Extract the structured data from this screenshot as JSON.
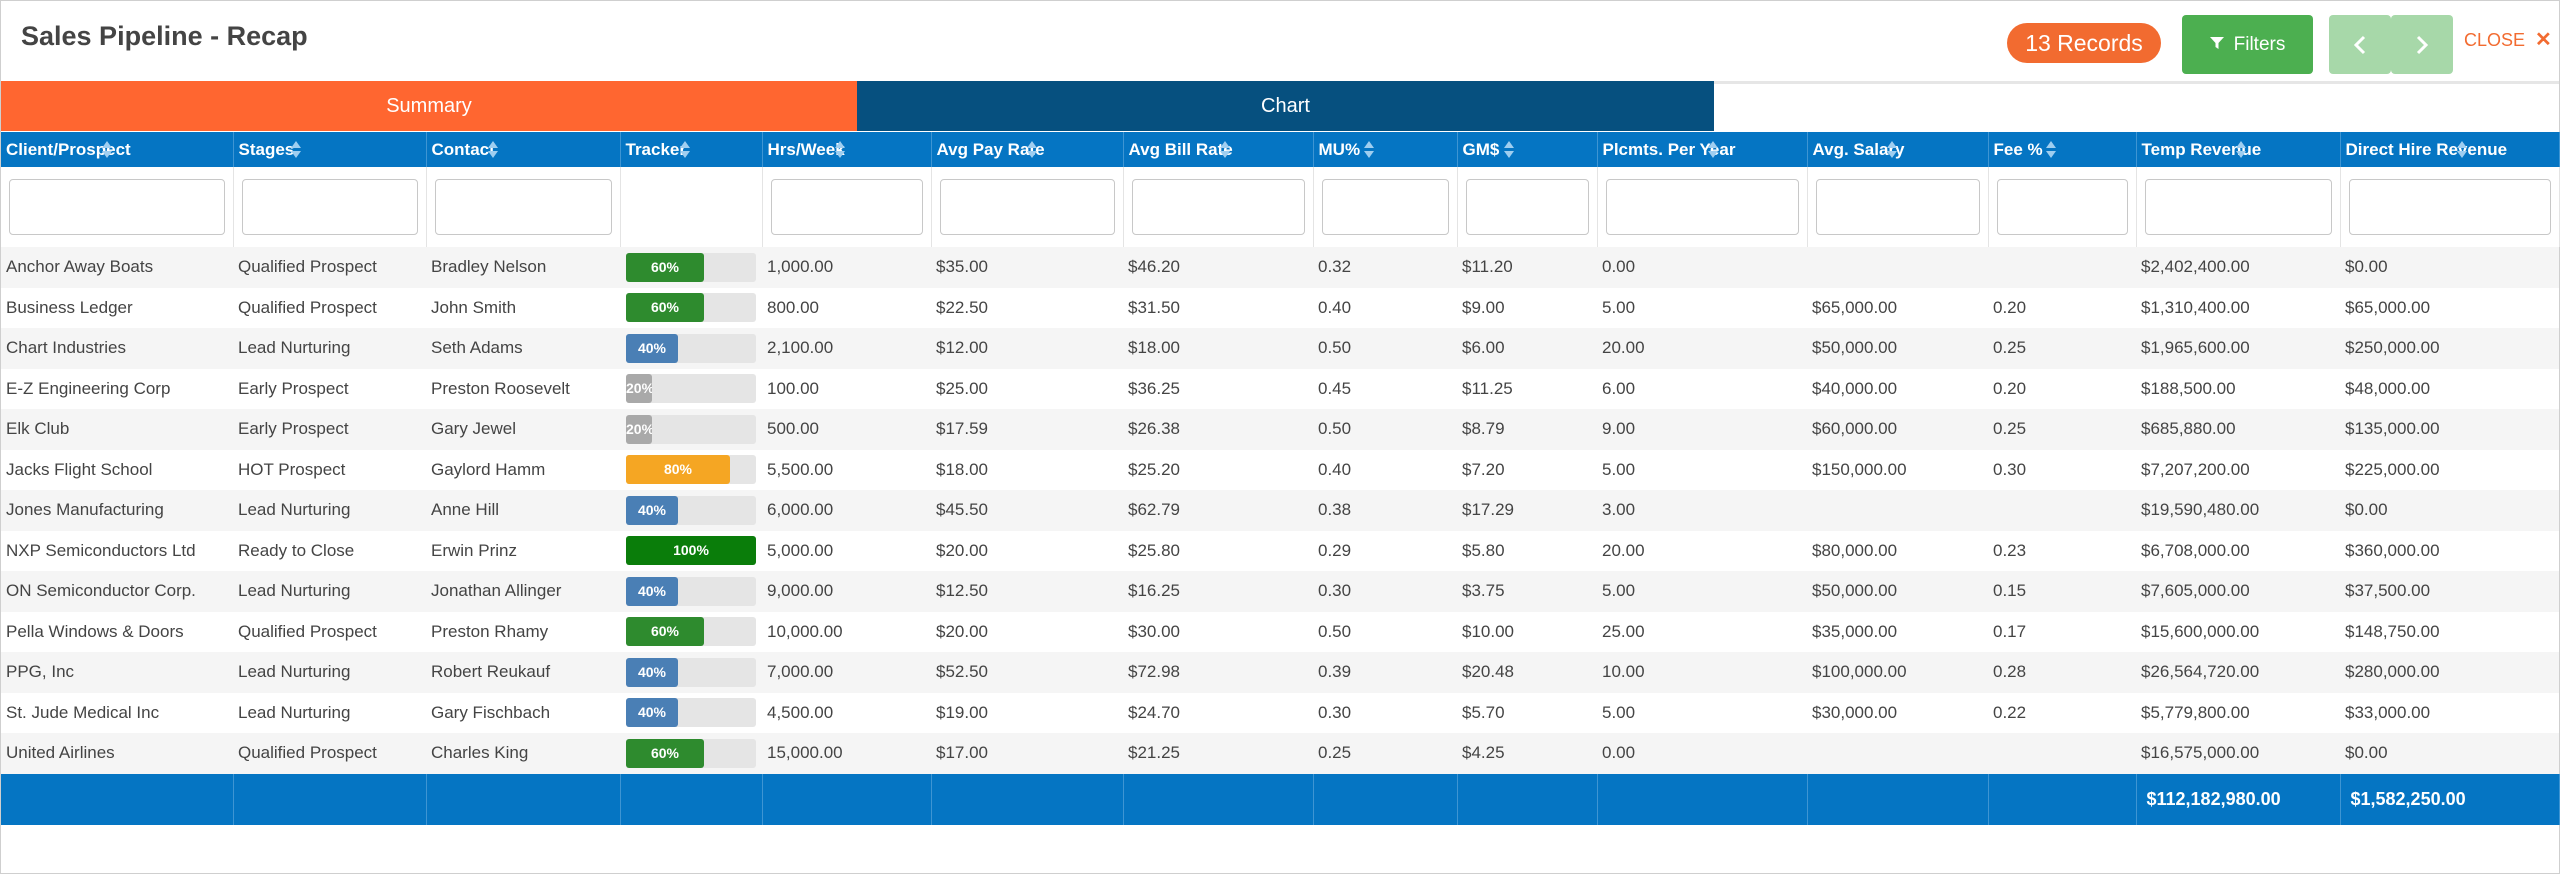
{
  "header": {
    "title": "Sales Pipeline - Recap",
    "records_badge": "13 Records",
    "filters_label": "Filters",
    "close_label": "CLOSE",
    "close_glyph": "✕"
  },
  "tabs": [
    {
      "label": "Summary",
      "active": true,
      "color": "#ff6630"
    },
    {
      "label": "Chart",
      "active": false,
      "color": "#06507f"
    }
  ],
  "columns": [
    "Client/Prospect",
    "Stages",
    "Contact",
    "Tracker",
    "Hrs/Week",
    "Avg Pay Rate",
    "Avg Bill Rate",
    "MU%",
    "GM$",
    "Plcmts. Per Year",
    "Avg. Salary",
    "Fee %",
    "Temp Revenue",
    "Direct Hire Revenue"
  ],
  "rows": [
    {
      "client": "Anchor Away Boats",
      "stage": "Qualified Prospect",
      "contact": "Bradley Nelson",
      "tracker": "60%",
      "tracker_value": 0.6,
      "tracker_color": "#2e8b2e",
      "hrs": "1,000.00",
      "pay": "$35.00",
      "bill": "$46.20",
      "mu": "0.32",
      "gm": "$11.20",
      "plcmts": "0.00",
      "salary": "",
      "fee": "",
      "temp": "$2,402,400.00",
      "direct": "$0.00"
    },
    {
      "client": "Business Ledger",
      "stage": "Qualified Prospect",
      "contact": "John Smith",
      "tracker": "60%",
      "tracker_value": 0.6,
      "tracker_color": "#2e8b2e",
      "hrs": "800.00",
      "pay": "$22.50",
      "bill": "$31.50",
      "mu": "0.40",
      "gm": "$9.00",
      "plcmts": "5.00",
      "salary": "$65,000.00",
      "fee": "0.20",
      "temp": "$1,310,400.00",
      "direct": "$65,000.00"
    },
    {
      "client": "Chart Industries",
      "stage": "Lead Nurturing",
      "contact": "Seth Adams",
      "tracker": "40%",
      "tracker_value": 0.4,
      "tracker_color": "#4a7fb5",
      "hrs": "2,100.00",
      "pay": "$12.00",
      "bill": "$18.00",
      "mu": "0.50",
      "gm": "$6.00",
      "plcmts": "20.00",
      "salary": "$50,000.00",
      "fee": "0.25",
      "temp": "$1,965,600.00",
      "direct": "$250,000.00"
    },
    {
      "client": "E-Z Engineering Corp",
      "stage": "Early Prospect",
      "contact": "Preston Roosevelt",
      "tracker": "20%",
      "tracker_value": 0.2,
      "tracker_color": "#a9a9a9",
      "hrs": "100.00",
      "pay": "$25.00",
      "bill": "$36.25",
      "mu": "0.45",
      "gm": "$11.25",
      "plcmts": "6.00",
      "salary": "$40,000.00",
      "fee": "0.20",
      "temp": "$188,500.00",
      "direct": "$48,000.00"
    },
    {
      "client": "Elk Club",
      "stage": "Early Prospect",
      "contact": "Gary Jewel",
      "tracker": "20%",
      "tracker_value": 0.2,
      "tracker_color": "#a9a9a9",
      "hrs": "500.00",
      "pay": "$17.59",
      "bill": "$26.38",
      "mu": "0.50",
      "gm": "$8.79",
      "plcmts": "9.00",
      "salary": "$60,000.00",
      "fee": "0.25",
      "temp": "$685,880.00",
      "direct": "$135,000.00"
    },
    {
      "client": "Jacks Flight School",
      "stage": "HOT Prospect",
      "contact": "Gaylord Hamm",
      "tracker": "80%",
      "tracker_value": 0.8,
      "tracker_color": "#f5a623",
      "hrs": "5,500.00",
      "pay": "$18.00",
      "bill": "$25.20",
      "mu": "0.40",
      "gm": "$7.20",
      "plcmts": "5.00",
      "salary": "$150,000.00",
      "fee": "0.30",
      "temp": "$7,207,200.00",
      "direct": "$225,000.00"
    },
    {
      "client": "Jones Manufacturing",
      "stage": "Lead Nurturing",
      "contact": "Anne Hill",
      "tracker": "40%",
      "tracker_value": 0.4,
      "tracker_color": "#4a7fb5",
      "hrs": "6,000.00",
      "pay": "$45.50",
      "bill": "$62.79",
      "mu": "0.38",
      "gm": "$17.29",
      "plcmts": "3.00",
      "salary": "",
      "fee": "",
      "temp": "$19,590,480.00",
      "direct": "$0.00"
    },
    {
      "client": "NXP Semiconductors Ltd",
      "stage": "Ready to Close",
      "contact": "Erwin Prinz",
      "tracker": "100%",
      "tracker_value": 1.0,
      "tracker_color": "#0a7d0a",
      "hrs": "5,000.00",
      "pay": "$20.00",
      "bill": "$25.80",
      "mu": "0.29",
      "gm": "$5.80",
      "plcmts": "20.00",
      "salary": "$80,000.00",
      "fee": "0.23",
      "temp": "$6,708,000.00",
      "direct": "$360,000.00"
    },
    {
      "client": "ON Semiconductor Corp.",
      "stage": "Lead Nurturing",
      "contact": "Jonathan Allinger",
      "tracker": "40%",
      "tracker_value": 0.4,
      "tracker_color": "#4a7fb5",
      "hrs": "9,000.00",
      "pay": "$12.50",
      "bill": "$16.25",
      "mu": "0.30",
      "gm": "$3.75",
      "plcmts": "5.00",
      "salary": "$50,000.00",
      "fee": "0.15",
      "temp": "$7,605,000.00",
      "direct": "$37,500.00"
    },
    {
      "client": "Pella Windows & Doors",
      "stage": "Qualified Prospect",
      "contact": "Preston Rhamy",
      "tracker": "60%",
      "tracker_value": 0.6,
      "tracker_color": "#2e8b2e",
      "hrs": "10,000.00",
      "pay": "$20.00",
      "bill": "$30.00",
      "mu": "0.50",
      "gm": "$10.00",
      "plcmts": "25.00",
      "salary": "$35,000.00",
      "fee": "0.17",
      "temp": "$15,600,000.00",
      "direct": "$148,750.00"
    },
    {
      "client": "PPG, Inc",
      "stage": "Lead Nurturing",
      "contact": "Robert Reukauf",
      "tracker": "40%",
      "tracker_value": 0.4,
      "tracker_color": "#4a7fb5",
      "hrs": "7,000.00",
      "pay": "$52.50",
      "bill": "$72.98",
      "mu": "0.39",
      "gm": "$20.48",
      "plcmts": "10.00",
      "salary": "$100,000.00",
      "fee": "0.28",
      "temp": "$26,564,720.00",
      "direct": "$280,000.00"
    },
    {
      "client": "St. Jude Medical Inc",
      "stage": "Lead Nurturing",
      "contact": "Gary Fischbach",
      "tracker": "40%",
      "tracker_value": 0.4,
      "tracker_color": "#4a7fb5",
      "hrs": "4,500.00",
      "pay": "$19.00",
      "bill": "$24.70",
      "mu": "0.30",
      "gm": "$5.70",
      "plcmts": "5.00",
      "salary": "$30,000.00",
      "fee": "0.22",
      "temp": "$5,779,800.00",
      "direct": "$33,000.00"
    },
    {
      "client": "United Airlines",
      "stage": "Qualified Prospect",
      "contact": "Charles King",
      "tracker": "60%",
      "tracker_value": 0.6,
      "tracker_color": "#2e8b2e",
      "hrs": "15,000.00",
      "pay": "$17.00",
      "bill": "$21.25",
      "mu": "0.25",
      "gm": "$4.25",
      "plcmts": "0.00",
      "salary": "",
      "fee": "",
      "temp": "$16,575,000.00",
      "direct": "$0.00"
    }
  ],
  "totals": {
    "temp": "$112,182,980.00",
    "direct": "$1,582,250.00"
  },
  "colors": {
    "accent": "#ff6630",
    "header_blue": "#0575c3",
    "chart_tab": "#06507f",
    "filters_green": "#4caf50"
  }
}
